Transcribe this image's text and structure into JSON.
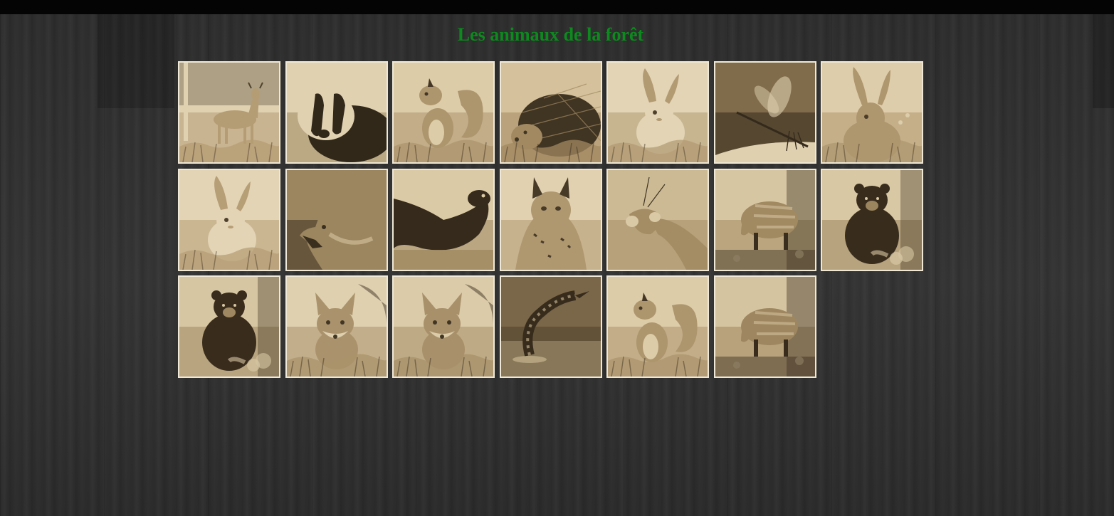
{
  "page": {
    "title": "Les animaux de la forêt",
    "title_color": "#0c8a1e",
    "background_color": "#303030",
    "topbar_color": "#040404"
  },
  "tiles": [
    {
      "animal": "deer",
      "palette": {
        "light": "#e9dcbd",
        "mid": "#b9a37c",
        "dark": "#4e4330"
      }
    },
    {
      "animal": "badger",
      "palette": {
        "light": "#e9dcbd",
        "mid": "#a18c66",
        "dark": "#2b241a"
      }
    },
    {
      "animal": "squirrel",
      "palette": {
        "light": "#e4d6b4",
        "mid": "#b19b74",
        "dark": "#3f3425"
      }
    },
    {
      "animal": "hedgehog",
      "palette": {
        "light": "#ddcba7",
        "mid": "#a58e67",
        "dark": "#3b3122"
      }
    },
    {
      "animal": "rabbit",
      "palette": {
        "light": "#ecdfc2",
        "mid": "#b7a17a",
        "dark": "#4a3f2d"
      }
    },
    {
      "animal": "dragonfly",
      "palette": {
        "light": "#e8dbbc",
        "mid": "#9b8661",
        "dark": "#2e261b"
      }
    },
    {
      "animal": "hare",
      "palette": {
        "light": "#e6d7b6",
        "mid": "#b29c75",
        "dark": "#463a29"
      }
    },
    {
      "animal": "rabbit",
      "palette": {
        "light": "#ecdfc2",
        "mid": "#bba47d",
        "dark": "#4a3f2d"
      }
    },
    {
      "animal": "wolf",
      "palette": {
        "light": "#e0d1ae",
        "mid": "#9f8a64",
        "dark": "#352c1f"
      }
    },
    {
      "animal": "otter",
      "palette": {
        "light": "#e3d4b1",
        "mid": "#a38d67",
        "dark": "#2f271c"
      }
    },
    {
      "animal": "lynx",
      "palette": {
        "light": "#eadcbc",
        "mid": "#b49e77",
        "dark": "#433828"
      }
    },
    {
      "animal": "praying-mantis",
      "palette": {
        "light": "#e2d3b0",
        "mid": "#a8926b",
        "dark": "#3a3022"
      }
    },
    {
      "animal": "wild-boar",
      "palette": {
        "light": "#dfd0ad",
        "mid": "#a48e68",
        "dark": "#352c1f"
      }
    },
    {
      "animal": "bear",
      "palette": {
        "light": "#e1d2af",
        "mid": "#9e8963",
        "dark": "#32291d"
      }
    },
    {
      "animal": "bear",
      "palette": {
        "light": "#ded0ad",
        "mid": "#a28c66",
        "dark": "#33291d"
      }
    },
    {
      "animal": "fox",
      "palette": {
        "light": "#e8dbbc",
        "mid": "#ae9872",
        "dark": "#3c3224"
      }
    },
    {
      "animal": "fox",
      "palette": {
        "light": "#e3d5b3",
        "mid": "#ab9570",
        "dark": "#3b3123"
      }
    },
    {
      "animal": "snake",
      "palette": {
        "light": "#d8c8a4",
        "mid": "#9a8560",
        "dark": "#31281c"
      }
    },
    {
      "animal": "squirrel",
      "palette": {
        "light": "#e4d6b4",
        "mid": "#b19b74",
        "dark": "#3f3425"
      }
    },
    {
      "animal": "wild-boar",
      "palette": {
        "light": "#ddceab",
        "mid": "#a18b65",
        "dark": "#33291d"
      }
    }
  ]
}
